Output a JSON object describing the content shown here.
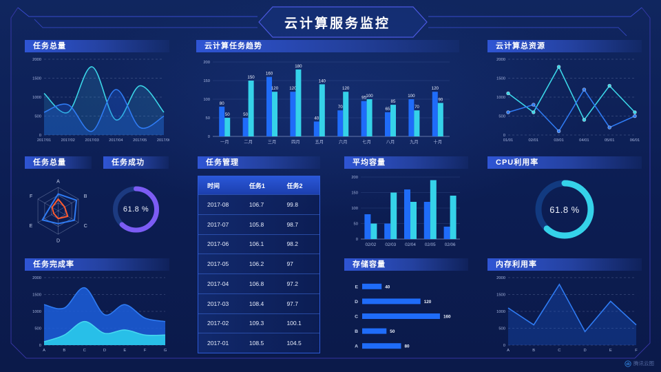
{
  "header": {
    "title": "云计算服务监控"
  },
  "watermark": {
    "label": "腾讯云图"
  },
  "colors": {
    "background": "#0c1d52",
    "accent_blue": "#1f6cf9",
    "accent_cyan": "#35d2e9",
    "accent_purple": "#7c5cf4",
    "accent_orange": "#ff5a2f",
    "frame_line": "#3d4fd8",
    "panel_title_bg": "#2f55d4"
  },
  "table": {
    "title": "任务管理",
    "columns": [
      "时间",
      "任务1",
      "任务2"
    ],
    "rows": [
      [
        "2017-08",
        "106.7",
        "99.8"
      ],
      [
        "2017-07",
        "105.8",
        "98.7"
      ],
      [
        "2017-06",
        "106.1",
        "98.2"
      ],
      [
        "2017-05",
        "106.2",
        "97"
      ],
      [
        "2017-04",
        "106.8",
        "97.2"
      ],
      [
        "2017-03",
        "108.4",
        "97.7"
      ],
      [
        "2017-02",
        "109.3",
        "100.1"
      ],
      [
        "2017-01",
        "108.5",
        "104.5"
      ]
    ]
  },
  "chart_data": [
    {
      "id": "task-total-area",
      "type": "line",
      "title": "任务总量",
      "x": [
        "2017/01",
        "2017/02",
        "2017/03",
        "2017/04",
        "2017/05",
        "2017/06"
      ],
      "smooth": true,
      "markers": false,
      "ylim": [
        0,
        2000
      ],
      "yticks": [
        0,
        500,
        1000,
        1500,
        2000
      ],
      "series": [
        {
          "name": "cyan-series",
          "color": "#3bd6e8",
          "fill": "rgba(54,180,230,0.18)",
          "values": [
            1100,
            600,
            1800,
            400,
            1300,
            600
          ]
        },
        {
          "name": "blue-series",
          "color": "#2f7bf3",
          "fill": "rgba(28,94,220,0.32)",
          "values": [
            600,
            800,
            100,
            1200,
            200,
            500
          ]
        }
      ]
    },
    {
      "id": "task-trend",
      "type": "bar",
      "title": "云计算任务趋势",
      "categories": [
        "一月",
        "二月",
        "三月",
        "四月",
        "五月",
        "六月",
        "七月",
        "八月",
        "九月",
        "十月"
      ],
      "ylim": [
        0,
        200
      ],
      "yticks": [
        0,
        50,
        100,
        150,
        200
      ],
      "show_labels": true,
      "series": [
        {
          "name": "任务1",
          "color": "#1f6cf9",
          "values": [
            80,
            50,
            160,
            120,
            40,
            70,
            95,
            65,
            100,
            120
          ]
        },
        {
          "name": "任务2",
          "color": "#35d2e9",
          "values": [
            50,
            150,
            120,
            180,
            140,
            120,
            100,
            85,
            70,
            90
          ]
        }
      ]
    },
    {
      "id": "cloud-resources",
      "type": "line",
      "title": "云计算总资源",
      "x": [
        "01/01",
        "02/01",
        "03/01",
        "04/01",
        "05/01",
        "06/01"
      ],
      "smooth": false,
      "markers": true,
      "ylim": [
        0,
        2000
      ],
      "yticks": [
        0,
        500,
        1000,
        1500,
        2000
      ],
      "series": [
        {
          "name": "cyan-series",
          "color": "#3bd6e8",
          "values": [
            1100,
            600,
            1800,
            400,
            1300,
            600
          ]
        },
        {
          "name": "blue-series",
          "color": "#2f7bf3",
          "values": [
            600,
            800,
            100,
            1200,
            200,
            500
          ]
        }
      ]
    },
    {
      "id": "task-radar",
      "type": "radar",
      "title": "任务总量",
      "axes": [
        "A",
        "B",
        "C",
        "D",
        "E",
        "F"
      ],
      "series": [
        {
          "name": "outer-blue",
          "color": "#2f7bf3",
          "values": [
            0.72,
            0.9,
            0.8,
            0.55,
            0.78,
            0.38
          ]
        },
        {
          "name": "inner-orange",
          "color": "#ff5a2f",
          "values": [
            0.5,
            0.32,
            0.47,
            0.33,
            0.22,
            0.3
          ]
        }
      ]
    },
    {
      "id": "task-success",
      "type": "donut",
      "title": "任务成功",
      "value": 61.8,
      "display": "61.8 %",
      "color": "#7c5cf4",
      "track": "#1c3a80"
    },
    {
      "id": "avg-capacity",
      "type": "bar",
      "title": "平均容量",
      "categories": [
        "02/02",
        "02/03",
        "02/04",
        "02/05",
        "02/06"
      ],
      "ylim": [
        0,
        200
      ],
      "yticks": [
        0,
        50,
        100,
        150,
        200
      ],
      "show_labels": false,
      "series": [
        {
          "name": "blue-series",
          "color": "#1f6cf9",
          "values": [
            80,
            50,
            160,
            120,
            40
          ]
        },
        {
          "name": "cyan-series",
          "color": "#35d2e9",
          "values": [
            50,
            150,
            120,
            190,
            140
          ]
        }
      ]
    },
    {
      "id": "cpu",
      "type": "donut",
      "title": "CPU利用率",
      "value": 61.8,
      "display": "61.8 %",
      "color": "#35d2e9",
      "track": "#123a80"
    },
    {
      "id": "completion-rate",
      "type": "line",
      "title": "任务完成率",
      "x": [
        "A",
        "B",
        "C",
        "D",
        "E",
        "F",
        "G"
      ],
      "smooth": true,
      "markers": false,
      "ylim": [
        0,
        2000
      ],
      "yticks": [
        0,
        500,
        1000,
        1500,
        2000
      ],
      "series": [
        {
          "name": "blue-area",
          "color": "#2f7bf3",
          "fill": "rgba(28,94,220,0.85)",
          "values": [
            1200,
            1100,
            1700,
            900,
            1200,
            800,
            700
          ]
        },
        {
          "name": "cyan-area",
          "color": "#45d6ef",
          "fill": "rgba(41,197,234,0.95)",
          "values": [
            100,
            300,
            700,
            350,
            450,
            300,
            300
          ]
        }
      ]
    },
    {
      "id": "storage",
      "type": "hbar",
      "title": "存储容量",
      "categories": [
        "E",
        "D",
        "C",
        "B",
        "A"
      ],
      "values": [
        40,
        120,
        160,
        50,
        80
      ],
      "xmax": 170,
      "color": "#1f6cf9"
    },
    {
      "id": "memory",
      "type": "line",
      "title": "内存利用率",
      "x": [
        "A",
        "B",
        "C",
        "D",
        "E",
        "F"
      ],
      "smooth": false,
      "markers": false,
      "ylim": [
        0,
        2000
      ],
      "yticks": [
        0,
        500,
        1000,
        1500,
        2000
      ],
      "series": [
        {
          "name": "blue-series",
          "color": "#2f7bf3",
          "fill": "rgba(28,94,220,0.30)",
          "values": [
            1100,
            600,
            1800,
            400,
            1300,
            600
          ]
        }
      ]
    }
  ]
}
